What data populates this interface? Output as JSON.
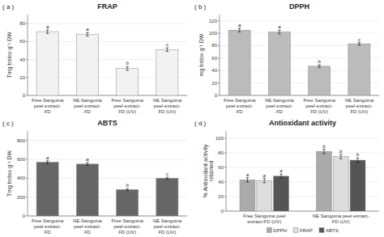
{
  "chart_data": [
    {
      "type": "bar",
      "title": "FRAP",
      "annotation": "( a )",
      "y_label": "Tmg trolox·g⁻¹ DW",
      "categories": [
        "Free Sanguina\npeel extract-\nFD",
        "NE-Sanguina\npeel extract-\nFD",
        "Free Sanguina\npeel extract-\nFD (UV)",
        "NE Sanguina\npeel extract-\nFD (UV)"
      ],
      "values": [
        71,
        68,
        30,
        51
      ],
      "errors": [
        2,
        2,
        2,
        2
      ],
      "letters": [
        "a",
        "a",
        "b",
        "c"
      ],
      "color": "#f2f2f2",
      "ylim": [
        0,
        90
      ],
      "yticks": [
        0,
        20,
        40,
        60,
        80
      ],
      "grid": true
    },
    {
      "type": "bar",
      "title": "DPPH",
      "annotation": "( b )",
      "y_label": "mg trolox·g⁻¹ DW",
      "categories": [
        "Free Sanguina\npeel extract-\nFD",
        "NE-Sanguina\npeel extract-\nFD",
        "Free Sanguina\npeel extract-\nFD (UV)",
        "NE Sanguina\npeel extract-\nFD (UV)"
      ],
      "values": [
        105,
        102,
        47,
        83
      ],
      "errors": [
        3,
        3,
        2,
        2
      ],
      "letters": [
        "a",
        "a",
        "b",
        "c"
      ],
      "color": "#bbbbbb",
      "ylim": [
        0,
        130
      ],
      "yticks": [
        0,
        20,
        40,
        60,
        80,
        100,
        120
      ],
      "grid": true
    },
    {
      "type": "bar",
      "title": "ABTS",
      "annotation": "( c )",
      "y_label": "Tmg trolox·g⁻¹ DW",
      "categories": [
        "Free Sanguina\npeel extract-\nFD",
        "NE-Sanguina\npeel extract-\nFD",
        "Free Sanguina\npeel extract-\nFD (UV)",
        "NE Sanguina\npeel extract-\nFD (UV)"
      ],
      "values": [
        570,
        550,
        280,
        400
      ],
      "errors": [
        15,
        15,
        10,
        10
      ],
      "letters": [
        "a",
        "a",
        "b",
        "c"
      ],
      "color": "#666666",
      "ylim": [
        0,
        900
      ],
      "yticks": [
        0,
        200,
        400,
        600,
        800
      ],
      "grid": true
    },
    {
      "type": "bar",
      "title": "Antioxidant activity",
      "annotation": "( d )",
      "y_label": "% Antioxidant activity\nretained",
      "categories": [
        "Free Sanguina peel\nextract-FD (UV)",
        "NE Sanguina peel extract-\nFD (UV)"
      ],
      "series": [
        {
          "name": "DPPH",
          "color": "#aaaaaa",
          "values": [
            43,
            82
          ],
          "errors": [
            3,
            3
          ],
          "letters": [
            "a",
            "b"
          ]
        },
        {
          "name": "FRAP",
          "color": "#dddddd",
          "values": [
            42,
            75
          ],
          "errors": [
            3,
            3
          ],
          "letters": [
            "a",
            "b"
          ]
        },
        {
          "name": "ABTS",
          "color": "#555555",
          "values": [
            48,
            70
          ],
          "errors": [
            3,
            3
          ],
          "letters": [
            "a",
            "b"
          ]
        }
      ],
      "ylim": [
        0,
        110
      ],
      "yticks": [
        0,
        20,
        40,
        60,
        80,
        100
      ],
      "grid": true,
      "legend": "bottom"
    }
  ]
}
